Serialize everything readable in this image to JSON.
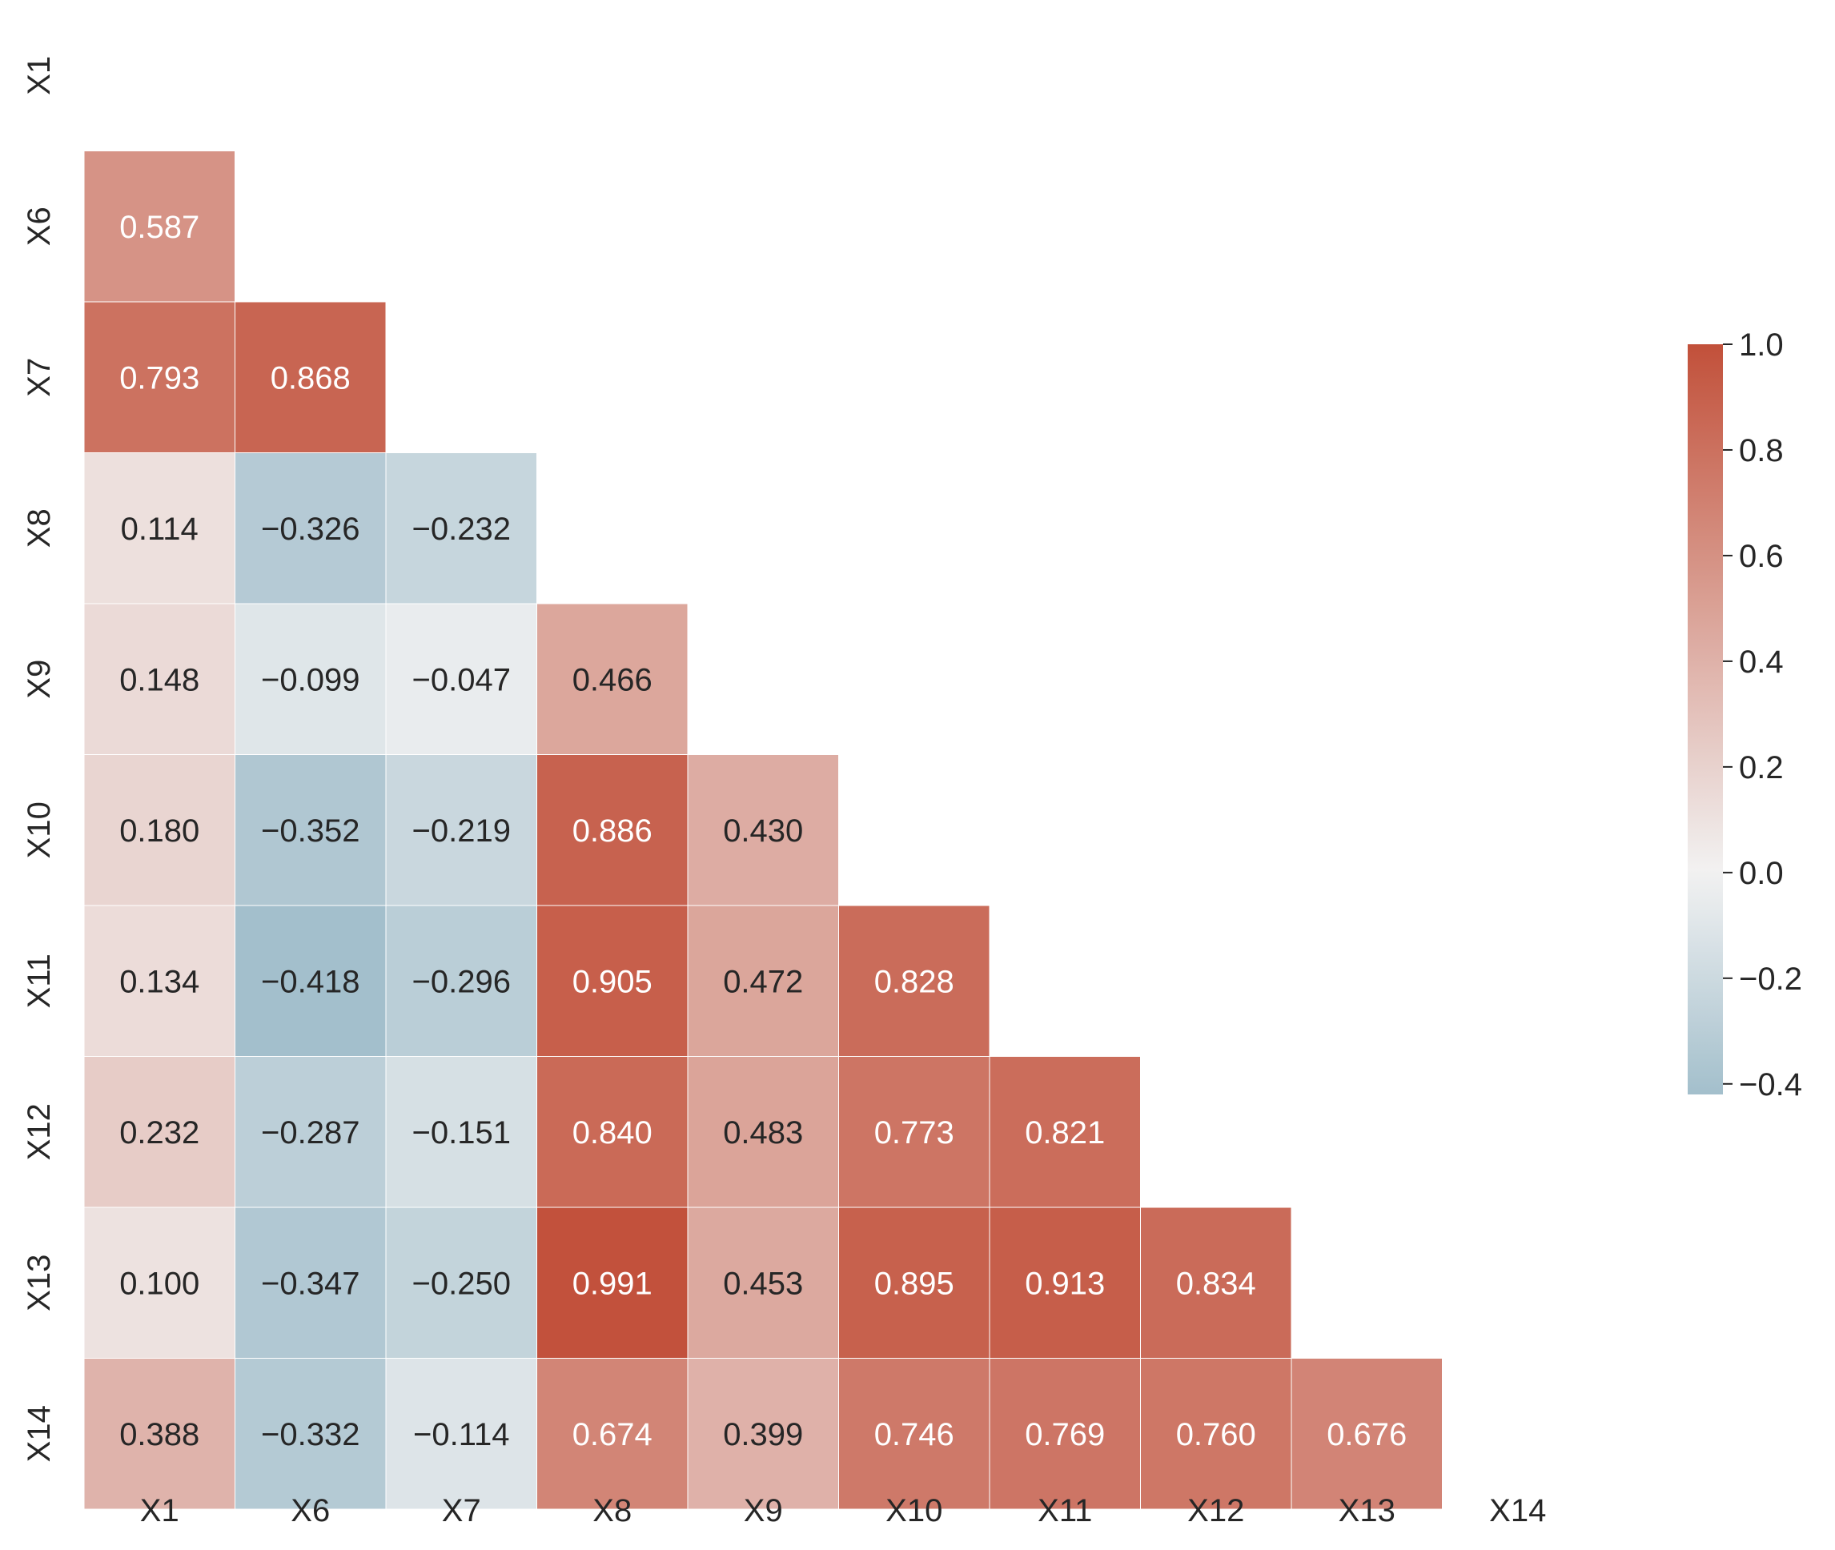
{
  "chart_data": {
    "type": "heatmap",
    "title": "",
    "xlabel": "",
    "ylabel": "",
    "variables": [
      "X1",
      "X6",
      "X7",
      "X8",
      "X9",
      "X10",
      "X11",
      "X12",
      "X13",
      "X14"
    ],
    "mask": "upper-triangle-including-diagonal",
    "matrix": [
      [
        null,
        null,
        null,
        null,
        null,
        null,
        null,
        null,
        null,
        null
      ],
      [
        "0.587",
        null,
        null,
        null,
        null,
        null,
        null,
        null,
        null,
        null
      ],
      [
        "0.793",
        "0.868",
        null,
        null,
        null,
        null,
        null,
        null,
        null,
        null
      ],
      [
        "0.114",
        "-0.326",
        "-0.232",
        null,
        null,
        null,
        null,
        null,
        null,
        null
      ],
      [
        "0.148",
        "-0.099",
        "-0.047",
        "0.466",
        null,
        null,
        null,
        null,
        null,
        null
      ],
      [
        "0.180",
        "-0.352",
        "-0.219",
        "0.886",
        "0.430",
        null,
        null,
        null,
        null,
        null
      ],
      [
        "0.134",
        "-0.418",
        "-0.296",
        "0.905",
        "0.472",
        "0.828",
        null,
        null,
        null,
        null
      ],
      [
        "0.232",
        "-0.287",
        "-0.151",
        "0.840",
        "0.483",
        "0.773",
        "0.821",
        null,
        null,
        null
      ],
      [
        "0.100",
        "-0.347",
        "-0.250",
        "0.991",
        "0.453",
        "0.895",
        "0.913",
        "0.834",
        null,
        null
      ],
      [
        "0.388",
        "-0.332",
        "-0.114",
        "0.674",
        "0.399",
        "0.746",
        "0.769",
        "0.760",
        "0.676",
        null
      ]
    ],
    "colorbar": {
      "range": [
        -0.42,
        1.0
      ],
      "ticks": [
        "1.0",
        "0.8",
        "0.6",
        "0.4",
        "0.2",
        "0.0",
        "-0.2",
        "-0.4"
      ],
      "colormap": {
        "negative": "#a3bfcc",
        "center": "#f2f2f2",
        "positive": "#c2503a"
      }
    },
    "colors": {
      "text_dark": "#262626",
      "text_light": "#ffffff",
      "cell_border": "#ffffff"
    }
  }
}
